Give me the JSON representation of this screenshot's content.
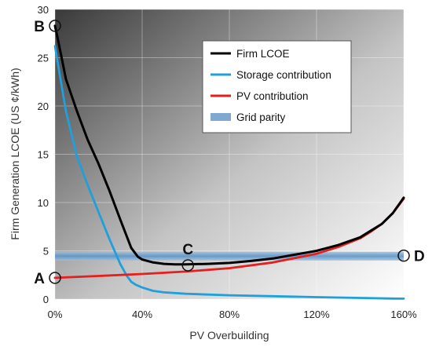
{
  "chart_data": {
    "type": "line",
    "title": "",
    "xlabel": "PV Overbuilding",
    "ylabel": "Firm Generation LCOE (US ¢/kWh)",
    "xlim": [
      0,
      160
    ],
    "ylim": [
      0,
      30
    ],
    "x_ticks": [
      0,
      40,
      80,
      120,
      160
    ],
    "x_tick_labels": [
      "0%",
      "40%",
      "80%",
      "120%",
      "160%"
    ],
    "y_ticks": [
      0,
      5,
      10,
      15,
      20,
      25,
      30
    ],
    "y_tick_labels": [
      "0",
      "5",
      "10",
      "15",
      "20",
      "25",
      "30"
    ],
    "grid": true,
    "legend_position": "top-right",
    "series": [
      {
        "name": "Firm LCOE",
        "color": "#000000",
        "x": [
          0,
          2,
          5,
          10,
          15,
          20,
          25,
          30,
          35,
          38,
          40,
          45,
          50,
          55,
          60,
          70,
          80,
          90,
          100,
          110,
          120,
          130,
          140,
          145,
          150,
          155,
          160
        ],
        "y": [
          28.3,
          26.2,
          22.8,
          19.5,
          16.5,
          14.0,
          11.2,
          8.2,
          5.3,
          4.4,
          4.1,
          3.8,
          3.65,
          3.6,
          3.6,
          3.65,
          3.75,
          3.95,
          4.2,
          4.6,
          5.0,
          5.6,
          6.4,
          7.1,
          7.8,
          8.9,
          10.5
        ]
      },
      {
        "name": "Storage contribution",
        "color": "#1f9fdb",
        "x": [
          0,
          2,
          5,
          10,
          15,
          20,
          25,
          30,
          33,
          35,
          37,
          40,
          45,
          50,
          60,
          80,
          100,
          120,
          140,
          155,
          160
        ],
        "y": [
          26.2,
          23.5,
          19.5,
          14.8,
          11.8,
          9.0,
          6.2,
          3.6,
          2.4,
          1.8,
          1.5,
          1.2,
          0.85,
          0.7,
          0.55,
          0.4,
          0.3,
          0.2,
          0.12,
          0.06,
          0.05
        ]
      },
      {
        "name": "PV contribution",
        "color": "#e61e1e",
        "x": [
          0,
          20,
          40,
          60,
          80,
          100,
          120,
          130,
          140,
          145,
          150,
          155,
          160
        ],
        "y": [
          2.2,
          2.4,
          2.6,
          2.85,
          3.2,
          3.8,
          4.7,
          5.4,
          6.3,
          7.0,
          7.8,
          8.9,
          10.4
        ]
      }
    ],
    "bands": [
      {
        "name": "Grid parity",
        "color": "#7fa9cf",
        "y_low": 4.0,
        "y_high": 4.9
      }
    ],
    "points": [
      {
        "label": "A",
        "x": 0,
        "y": 2.2,
        "label_side": "left"
      },
      {
        "label": "B",
        "x": 0,
        "y": 28.3,
        "label_side": "left"
      },
      {
        "label": "C",
        "x": 61,
        "y": 3.5,
        "label_side": "above"
      },
      {
        "label": "D",
        "x": 160,
        "y": 4.5,
        "label_side": "right"
      }
    ]
  }
}
